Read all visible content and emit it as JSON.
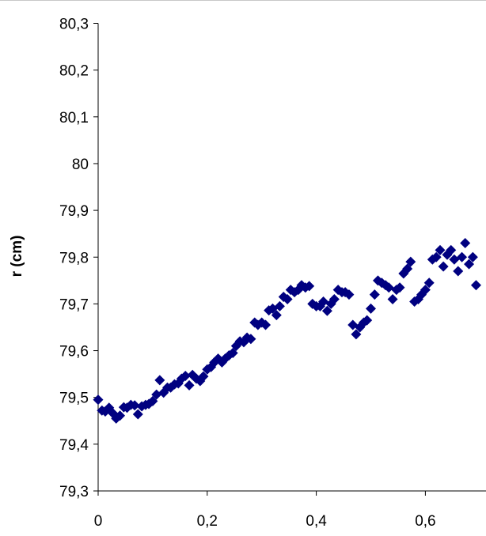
{
  "chart_data": {
    "type": "scatter",
    "ylabel": "r (cm)",
    "xlabel": "",
    "xlim": [
      0,
      0.7
    ],
    "ylim": [
      79.3,
      80.3
    ],
    "x_ticks": [
      0,
      0.2,
      0.4,
      0.6
    ],
    "x_tick_labels": [
      "0",
      "0,2",
      "0,4",
      "0,6"
    ],
    "y_ticks": [
      79.3,
      79.4,
      79.5,
      79.6,
      79.7,
      79.8,
      79.9,
      80.0,
      80.1,
      80.2,
      80.3
    ],
    "y_tick_labels": [
      "79,3",
      "79,4",
      "79,5",
      "79,6",
      "79,7",
      "79,8",
      "79,9",
      "80",
      "80,1",
      "80,2",
      "80,3"
    ],
    "grid": false,
    "legend": "none",
    "marker": "diamond",
    "marker_color": "#000080",
    "points": [
      [
        0.0,
        79.495
      ],
      [
        0.007,
        79.472
      ],
      [
        0.013,
        79.47
      ],
      [
        0.02,
        79.478
      ],
      [
        0.027,
        79.466
      ],
      [
        0.033,
        79.455
      ],
      [
        0.04,
        79.461
      ],
      [
        0.047,
        79.479
      ],
      [
        0.053,
        79.478
      ],
      [
        0.06,
        79.484
      ],
      [
        0.067,
        79.483
      ],
      [
        0.073,
        79.464
      ],
      [
        0.08,
        79.481
      ],
      [
        0.087,
        79.484
      ],
      [
        0.093,
        79.486
      ],
      [
        0.1,
        79.492
      ],
      [
        0.107,
        79.506
      ],
      [
        0.113,
        79.537
      ],
      [
        0.12,
        79.51
      ],
      [
        0.127,
        79.521
      ],
      [
        0.133,
        79.521
      ],
      [
        0.14,
        79.528
      ],
      [
        0.147,
        79.53
      ],
      [
        0.153,
        79.54
      ],
      [
        0.16,
        79.546
      ],
      [
        0.167,
        79.526
      ],
      [
        0.173,
        79.548
      ],
      [
        0.18,
        79.54
      ],
      [
        0.187,
        79.535
      ],
      [
        0.193,
        79.545
      ],
      [
        0.2,
        79.56
      ],
      [
        0.207,
        79.565
      ],
      [
        0.213,
        79.575
      ],
      [
        0.22,
        79.583
      ],
      [
        0.227,
        79.575
      ],
      [
        0.233,
        79.583
      ],
      [
        0.24,
        79.59
      ],
      [
        0.247,
        79.595
      ],
      [
        0.253,
        79.61
      ],
      [
        0.26,
        79.62
      ],
      [
        0.267,
        79.618
      ],
      [
        0.273,
        79.628
      ],
      [
        0.28,
        79.625
      ],
      [
        0.287,
        79.66
      ],
      [
        0.293,
        79.655
      ],
      [
        0.3,
        79.66
      ],
      [
        0.307,
        79.655
      ],
      [
        0.313,
        79.686
      ],
      [
        0.32,
        79.69
      ],
      [
        0.327,
        79.676
      ],
      [
        0.333,
        79.695
      ],
      [
        0.34,
        79.715
      ],
      [
        0.347,
        79.71
      ],
      [
        0.353,
        79.73
      ],
      [
        0.36,
        79.725
      ],
      [
        0.367,
        79.73
      ],
      [
        0.373,
        79.74
      ],
      [
        0.38,
        79.735
      ],
      [
        0.387,
        79.738
      ],
      [
        0.393,
        79.7
      ],
      [
        0.4,
        79.695
      ],
      [
        0.407,
        79.695
      ],
      [
        0.413,
        79.705
      ],
      [
        0.42,
        79.685
      ],
      [
        0.427,
        79.7
      ],
      [
        0.433,
        79.71
      ],
      [
        0.44,
        79.73
      ],
      [
        0.447,
        79.725
      ],
      [
        0.453,
        79.725
      ],
      [
        0.46,
        79.72
      ],
      [
        0.467,
        79.655
      ],
      [
        0.473,
        79.635
      ],
      [
        0.48,
        79.65
      ],
      [
        0.487,
        79.66
      ],
      [
        0.493,
        79.665
      ],
      [
        0.5,
        79.69
      ],
      [
        0.507,
        79.72
      ],
      [
        0.513,
        79.75
      ],
      [
        0.52,
        79.745
      ],
      [
        0.527,
        79.74
      ],
      [
        0.533,
        79.735
      ],
      [
        0.54,
        79.71
      ],
      [
        0.547,
        79.73
      ],
      [
        0.553,
        79.735
      ],
      [
        0.56,
        79.765
      ],
      [
        0.567,
        79.775
      ],
      [
        0.573,
        79.79
      ],
      [
        0.58,
        79.705
      ],
      [
        0.587,
        79.71
      ],
      [
        0.593,
        79.72
      ],
      [
        0.6,
        79.73
      ],
      [
        0.607,
        79.745
      ],
      [
        0.613,
        79.795
      ],
      [
        0.62,
        79.8
      ],
      [
        0.627,
        79.815
      ],
      [
        0.633,
        79.78
      ],
      [
        0.64,
        79.805
      ],
      [
        0.647,
        79.815
      ],
      [
        0.653,
        79.795
      ],
      [
        0.66,
        79.77
      ],
      [
        0.667,
        79.8
      ],
      [
        0.673,
        79.83
      ],
      [
        0.68,
        79.785
      ],
      [
        0.687,
        79.8
      ],
      [
        0.693,
        79.74
      ]
    ]
  }
}
